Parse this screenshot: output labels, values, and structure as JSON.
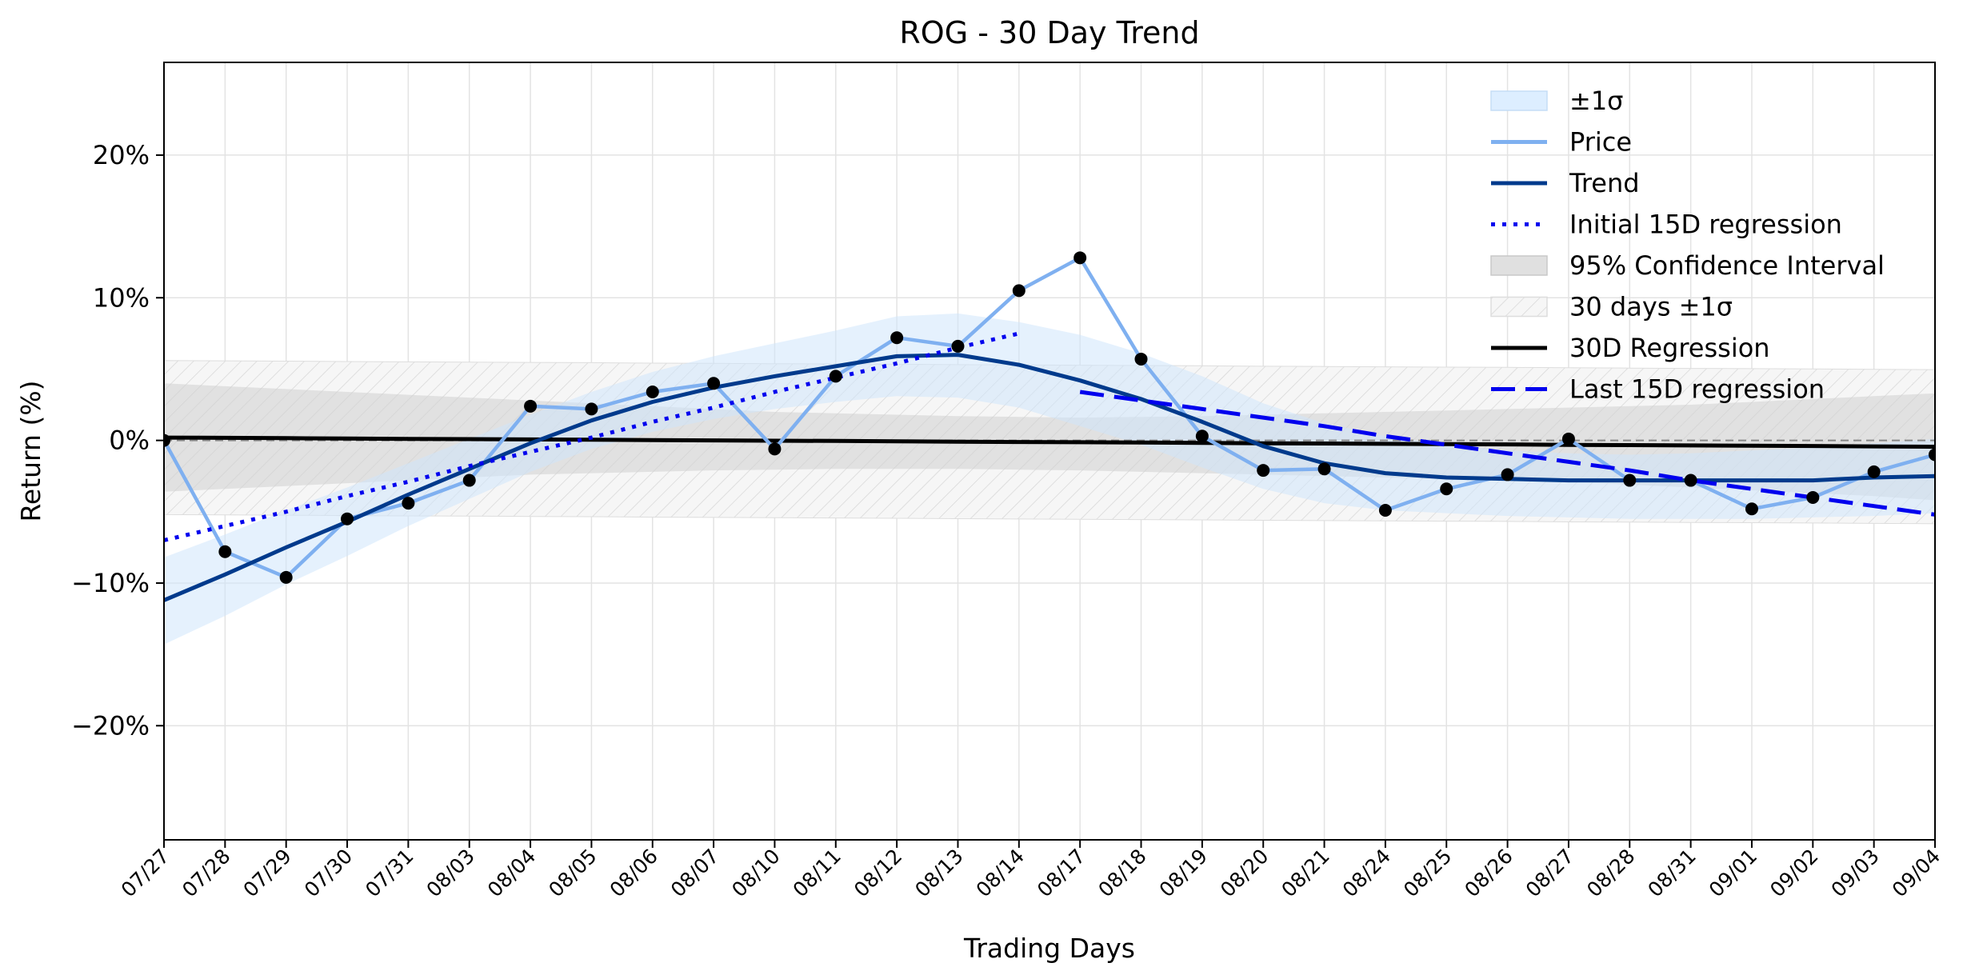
{
  "chart_data": {
    "type": "line",
    "title": "ROG - 30 Day Trend",
    "xlabel": "Trading Days",
    "ylabel": "Return (%)",
    "ylim": [
      -28,
      26.5
    ],
    "yticks": [
      20,
      10,
      0,
      -10,
      -20
    ],
    "ytick_labels": [
      "20%",
      "10%",
      "0%",
      "−10%",
      "−20%"
    ],
    "grid": true,
    "legend_position": "top-right",
    "categories": [
      "07/27",
      "07/28",
      "07/29",
      "07/30",
      "07/31",
      "08/03",
      "08/04",
      "08/05",
      "08/06",
      "08/07",
      "08/10",
      "08/11",
      "08/12",
      "08/13",
      "08/14",
      "08/17",
      "08/18",
      "08/19",
      "08/20",
      "08/21",
      "08/24",
      "08/25",
      "08/26",
      "08/27",
      "08/28",
      "08/31",
      "09/01",
      "09/02",
      "09/03",
      "09/04"
    ],
    "series": [
      {
        "name": "Price",
        "color": "#7fb0f0",
        "values": [
          0.0,
          -7.8,
          -9.6,
          -5.5,
          -4.4,
          -2.8,
          2.4,
          2.2,
          3.4,
          4.0,
          -0.6,
          4.5,
          7.2,
          6.6,
          10.5,
          12.8,
          5.7,
          0.3,
          -2.1,
          -2.0,
          -4.9,
          -3.4,
          -2.4,
          0.1,
          -2.8,
          -2.8,
          -4.8,
          -4.0,
          -2.2,
          -1.0
        ]
      },
      {
        "name": "Trend",
        "color": "#003a8c",
        "values": [
          -11.2,
          -9.4,
          -7.5,
          -5.7,
          -3.8,
          -2.0,
          -0.2,
          1.4,
          2.7,
          3.7,
          4.5,
          5.2,
          5.9,
          6.0,
          5.3,
          4.2,
          2.9,
          1.3,
          -0.4,
          -1.6,
          -2.3,
          -2.6,
          -2.7,
          -2.8,
          -2.8,
          -2.8,
          -2.8,
          -2.8,
          -2.6,
          -2.5
        ]
      },
      {
        "name": "Initial 15D regression",
        "color": "#0000ee",
        "values": [
          -7.0,
          -6.0,
          -5.0,
          -3.9,
          -2.9,
          -1.8,
          -0.8,
          0.2,
          1.3,
          2.3,
          3.4,
          4.4,
          5.4,
          6.5,
          7.5,
          null,
          null,
          null,
          null,
          null,
          null,
          null,
          null,
          null,
          null,
          null,
          null,
          null,
          null,
          null
        ]
      },
      {
        "name": "Last 15D regression",
        "color": "#0000ee",
        "values": [
          null,
          null,
          null,
          null,
          null,
          null,
          null,
          null,
          null,
          null,
          null,
          null,
          null,
          null,
          null,
          3.4,
          2.8,
          2.2,
          1.6,
          1.0,
          0.3,
          -0.3,
          -0.9,
          -1.5,
          -2.1,
          -2.8,
          -3.4,
          -4.0,
          -4.6,
          -5.2
        ]
      },
      {
        "name": "30D Regression",
        "color": "#000000",
        "values": [
          0.2,
          0.18,
          0.16,
          0.13,
          0.11,
          0.09,
          0.07,
          0.05,
          0.02,
          0.0,
          -0.02,
          -0.04,
          -0.06,
          -0.09,
          -0.11,
          -0.13,
          -0.15,
          -0.17,
          -0.2,
          -0.22,
          -0.24,
          -0.26,
          -0.28,
          -0.31,
          -0.33,
          -0.35,
          -0.37,
          -0.39,
          -0.42,
          -0.44
        ]
      }
    ],
    "bands": [
      {
        "name": "±1σ",
        "color": "#ddeeff",
        "upper": [
          -8.2,
          -6.6,
          -4.9,
          -3.3,
          -1.6,
          0.1,
          1.8,
          3.4,
          4.8,
          5.9,
          6.8,
          7.7,
          8.7,
          8.9,
          8.3,
          7.4,
          6.1,
          4.5,
          2.6,
          1.2,
          0.3,
          -0.3,
          -0.7,
          -0.9,
          -1.0,
          -0.9,
          -0.7,
          -0.5,
          -0.2,
          0.1
        ],
        "lower": [
          -14.3,
          -12.3,
          -10.1,
          -8.1,
          -6.0,
          -4.1,
          -2.2,
          -0.6,
          0.6,
          1.5,
          2.2,
          2.7,
          3.1,
          3.0,
          2.3,
          1.0,
          -0.3,
          -1.9,
          -3.4,
          -4.4,
          -4.9,
          -5.1,
          -5.3,
          -5.4,
          -5.5,
          -5.5,
          -5.5,
          -5.4,
          -5.3,
          -5.1
        ]
      },
      {
        "name": "95% Confidence Interval",
        "color": "#e6e6e6",
        "upper": [
          4.0,
          3.8,
          3.6,
          3.4,
          3.2,
          3.0,
          2.8,
          2.6,
          2.4,
          2.2,
          2.0,
          1.9,
          1.8,
          1.7,
          1.65,
          1.6,
          1.65,
          1.7,
          1.8,
          1.9,
          2.0,
          2.1,
          2.2,
          2.3,
          2.4,
          2.5,
          2.7,
          2.9,
          3.1,
          3.3
        ],
        "lower": [
          -3.6,
          -3.4,
          -3.2,
          -3.0,
          -2.8,
          -2.6,
          -2.4,
          -2.3,
          -2.2,
          -2.1,
          -2.05,
          -2.0,
          -2.0,
          -2.0,
          -2.05,
          -2.1,
          -2.2,
          -2.3,
          -2.4,
          -2.5,
          -2.6,
          -2.7,
          -2.8,
          -2.9,
          -3.1,
          -3.3,
          -3.5,
          -3.7,
          -3.9,
          -4.2
        ]
      },
      {
        "name": "30 days ±1σ",
        "color": "#f2f2f2",
        "upper_offset": 5.4,
        "lower_offset": -5.4
      }
    ],
    "zero_line": true
  }
}
